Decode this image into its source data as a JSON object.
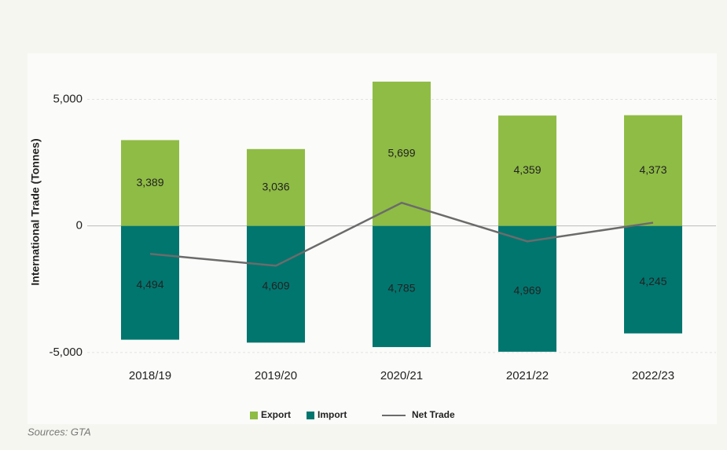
{
  "chart_data": {
    "type": "bar",
    "y_label": "International Trade (Tonnes)",
    "source": "Sources: GTA",
    "categories": [
      "2018/19",
      "2019/20",
      "2020/21",
      "2021/22",
      "2022/23"
    ],
    "series": [
      {
        "name": "Export",
        "color": "#8fbc45",
        "values": [
          3389,
          3036,
          5699,
          4359,
          4373
        ],
        "value_labels": [
          "3,389",
          "3,036",
          "5,699",
          "4,359",
          "4,373"
        ]
      },
      {
        "name": "Import",
        "color": "#00766f",
        "values": [
          -4494,
          -4609,
          -4785,
          -4969,
          -4245
        ],
        "value_labels": [
          "4,494",
          "4,609",
          "4,785",
          "4,969",
          "4,245"
        ]
      },
      {
        "name": "Net Trade",
        "type": "line",
        "color": "#6b6b6b",
        "values": [
          -1105,
          -1573,
          914,
          -610,
          128
        ]
      }
    ],
    "ylim": [
      -5500,
      7000
    ],
    "yticks": [
      {
        "value": -5000,
        "label": "-5,000"
      },
      0,
      {
        "value": 5000,
        "label": "5,000"
      }
    ],
    "grid": true,
    "legend": "bottom"
  }
}
